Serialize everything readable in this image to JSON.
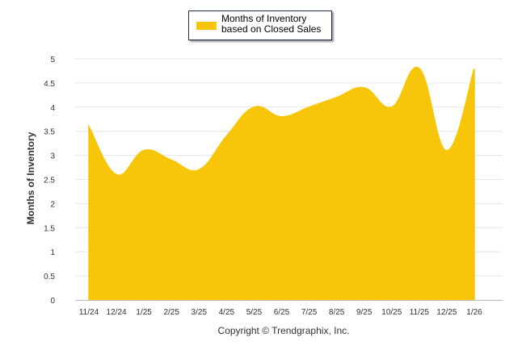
{
  "chart_data": {
    "type": "area",
    "title": "",
    "legend": {
      "label": "Months of Inventory based on Closed Sales",
      "placement": "top-center"
    },
    "xlabel": "",
    "ylabel": "Months of Inventory",
    "categories": [
      "11/24",
      "12/24",
      "1/25",
      "2/25",
      "3/25",
      "4/25",
      "5/25",
      "6/25",
      "7/25",
      "8/25",
      "9/25",
      "10/25",
      "11/25",
      "12/25",
      "1/26"
    ],
    "series": [
      {
        "name": "Months of Inventory based on Closed Sales",
        "color": "#f7c60b",
        "values": [
          3.6,
          2.6,
          3.1,
          2.9,
          2.7,
          3.4,
          4.0,
          3.8,
          4.0,
          4.2,
          4.4,
          4.0,
          4.8,
          3.1,
          4.8
        ]
      }
    ],
    "ylim": [
      0,
      5
    ],
    "yticks": [
      "0",
      "0.5",
      "1",
      "1.5",
      "2",
      "2.5",
      "3",
      "3.5",
      "4",
      "4.5",
      "5"
    ],
    "grid": true
  },
  "credit": "Copyright © Trendgraphix, Inc."
}
